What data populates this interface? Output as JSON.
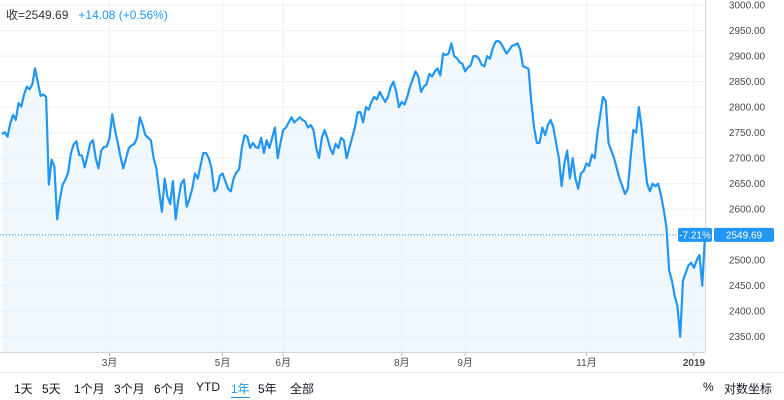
{
  "legend": {
    "label": "收=2549.69",
    "change": "+14.08",
    "percent": "(+0.56%)"
  },
  "toolbar": {
    "ranges": [
      "1天",
      "5天",
      "1个月",
      "3个月",
      "6个月",
      "YTD",
      "1年",
      "5年",
      "全部"
    ],
    "active": "1年",
    "percent_label": "%",
    "log_label": "对数坐标"
  },
  "colors": {
    "line": "#2196f3",
    "fill": "#e3f2fd",
    "grid": "#eef0f3",
    "last_price_bg": "#2196f3"
  },
  "chart_data": {
    "type": "area",
    "title": "",
    "xlabel": "",
    "ylabel": "",
    "ylim": [
      2320,
      3010
    ],
    "y_ticks": [
      "3000.00",
      "2950.00",
      "2900.00",
      "2850.00",
      "2800.00",
      "2750.00",
      "2700.00",
      "2650.00",
      "2600.00",
      "2550.00",
      "2500.00",
      "2450.00",
      "2400.00",
      "2350.00"
    ],
    "x_ticks": [
      {
        "label": "3月",
        "i": 39
      },
      {
        "label": "5月",
        "i": 80
      },
      {
        "label": "6月",
        "i": 102
      },
      {
        "label": "8月",
        "i": 145
      },
      {
        "label": "9月",
        "i": 168
      },
      {
        "label": "11月",
        "i": 212
      },
      {
        "label": "2019",
        "i": 251,
        "bold": true
      }
    ],
    "last_value": "2549.69",
    "last_change_pct": "-7.21%",
    "values": [
      2747,
      2751,
      2742,
      2768,
      2785,
      2775,
      2808,
      2801,
      2825,
      2840,
      2835,
      2845,
      2876,
      2849,
      2822,
      2825,
      2820,
      2648,
      2697,
      2684,
      2580,
      2620,
      2648,
      2658,
      2672,
      2710,
      2727,
      2733,
      2706,
      2705,
      2682,
      2705,
      2729,
      2735,
      2700,
      2680,
      2715,
      2722,
      2723,
      2740,
      2786,
      2755,
      2730,
      2702,
      2680,
      2700,
      2720,
      2725,
      2728,
      2740,
      2780,
      2765,
      2745,
      2740,
      2735,
      2700,
      2680,
      2635,
      2595,
      2660,
      2625,
      2610,
      2655,
      2580,
      2620,
      2650,
      2658,
      2605,
      2620,
      2640,
      2670,
      2660,
      2685,
      2710,
      2710,
      2700,
      2680,
      2635,
      2640,
      2665,
      2670,
      2655,
      2640,
      2635,
      2660,
      2672,
      2678,
      2720,
      2745,
      2742,
      2720,
      2730,
      2722,
      2720,
      2740,
      2710,
      2735,
      2720,
      2740,
      2760,
      2700,
      2730,
      2755,
      2760,
      2770,
      2780,
      2770,
      2775,
      2780,
      2775,
      2772,
      2760,
      2765,
      2755,
      2720,
      2700,
      2740,
      2755,
      2740,
      2720,
      2708,
      2728,
      2720,
      2740,
      2735,
      2700,
      2720,
      2740,
      2760,
      2790,
      2790,
      2770,
      2800,
      2795,
      2810,
      2820,
      2815,
      2830,
      2820,
      2810,
      2820,
      2840,
      2850,
      2830,
      2800,
      2810,
      2805,
      2820,
      2840,
      2855,
      2870,
      2860,
      2830,
      2840,
      2845,
      2865,
      2860,
      2870,
      2876,
      2862,
      2905,
      2902,
      2905,
      2925,
      2900,
      2896,
      2888,
      2885,
      2870,
      2878,
      2882,
      2900,
      2900,
      2895,
      2883,
      2880,
      2900,
      2895,
      2915,
      2928,
      2930,
      2925,
      2915,
      2905,
      2912,
      2920,
      2922,
      2925,
      2912,
      2880,
      2878,
      2875,
      2810,
      2760,
      2730,
      2730,
      2760,
      2745,
      2765,
      2775,
      2760,
      2730,
      2700,
      2645,
      2690,
      2715,
      2660,
      2700,
      2660,
      2640,
      2670,
      2675,
      2690,
      2685,
      2707,
      2700,
      2750,
      2785,
      2820,
      2812,
      2730,
      2715,
      2700,
      2680,
      2660,
      2645,
      2630,
      2640,
      2700,
      2755,
      2750,
      2800,
      2760,
      2700,
      2650,
      2635,
      2650,
      2645,
      2650,
      2628,
      2600,
      2565,
      2480,
      2460,
      2430,
      2410,
      2350,
      2460,
      2475,
      2490,
      2495,
      2485,
      2500,
      2510,
      2450,
      2549.69
    ]
  }
}
